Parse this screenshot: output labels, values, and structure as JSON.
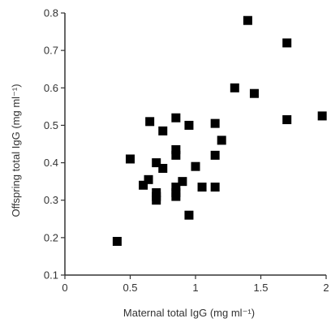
{
  "chart_data": {
    "type": "scatter",
    "xlabel": "Maternal total IgG (mg ml⁻¹)",
    "ylabel": "Offspring total IgG (mg ml⁻¹)",
    "xlim": [
      0,
      2
    ],
    "ylim": [
      0.1,
      0.8
    ],
    "x_ticks": [
      0,
      0.5,
      1,
      1.5,
      2
    ],
    "x_tick_labels": [
      "0",
      "0.5",
      "1",
      "1.5",
      "2"
    ],
    "y_ticks": [
      0.1,
      0.2,
      0.3,
      0.4,
      0.5,
      0.6,
      0.7,
      0.8
    ],
    "y_tick_labels": [
      "0.1",
      "0.2",
      "0.3",
      "0.4",
      "0.5",
      "0.6",
      "0.7",
      "0.8"
    ],
    "grid": false,
    "marker": "square",
    "colors": {
      "marker": "#000000",
      "axis": "#333333",
      "text": "#333333"
    },
    "points": [
      {
        "x": 0.4,
        "y": 0.19
      },
      {
        "x": 0.5,
        "y": 0.41
      },
      {
        "x": 0.6,
        "y": 0.34
      },
      {
        "x": 0.64,
        "y": 0.355
      },
      {
        "x": 0.65,
        "y": 0.51
      },
      {
        "x": 0.7,
        "y": 0.4
      },
      {
        "x": 0.7,
        "y": 0.32
      },
      {
        "x": 0.7,
        "y": 0.31
      },
      {
        "x": 0.7,
        "y": 0.3
      },
      {
        "x": 0.75,
        "y": 0.485
      },
      {
        "x": 0.75,
        "y": 0.385
      },
      {
        "x": 0.85,
        "y": 0.52
      },
      {
        "x": 0.85,
        "y": 0.435
      },
      {
        "x": 0.85,
        "y": 0.42
      },
      {
        "x": 0.85,
        "y": 0.335
      },
      {
        "x": 0.85,
        "y": 0.32
      },
      {
        "x": 0.85,
        "y": 0.31
      },
      {
        "x": 0.9,
        "y": 0.35
      },
      {
        "x": 0.95,
        "y": 0.5
      },
      {
        "x": 0.95,
        "y": 0.26
      },
      {
        "x": 1.0,
        "y": 0.39
      },
      {
        "x": 1.05,
        "y": 0.335
      },
      {
        "x": 1.15,
        "y": 0.505
      },
      {
        "x": 1.15,
        "y": 0.42
      },
      {
        "x": 1.15,
        "y": 0.335
      },
      {
        "x": 1.2,
        "y": 0.46
      },
      {
        "x": 1.3,
        "y": 0.6
      },
      {
        "x": 1.4,
        "y": 0.78
      },
      {
        "x": 1.45,
        "y": 0.585
      },
      {
        "x": 1.7,
        "y": 0.72
      },
      {
        "x": 1.7,
        "y": 0.515
      },
      {
        "x": 1.97,
        "y": 0.525
      }
    ]
  }
}
